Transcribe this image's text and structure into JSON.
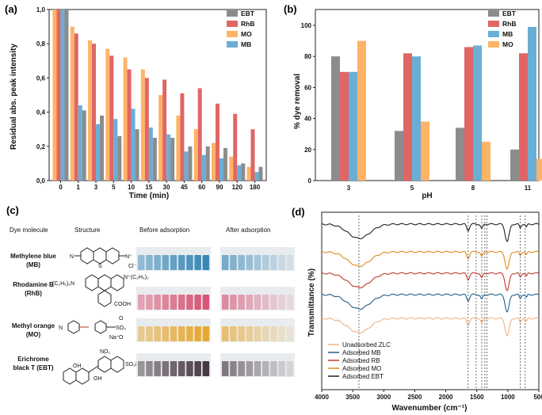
{
  "panels": {
    "a": "(a)",
    "b": "(b)",
    "c": "(c)",
    "d": "(d)"
  },
  "colors": {
    "EBT": "#8c8c8c",
    "RhB": "#e06666",
    "MO": "#ffb366",
    "MB": "#6aaed6",
    "ZLC": "#f4b183",
    "MBline": "#1f5f8b",
    "RBline": "#c0392b",
    "MOline": "#e08a1e",
    "EBTline": "#222222"
  },
  "chart_data": [
    {
      "id": "a",
      "type": "bar",
      "title": "",
      "xlabel": "Time (min)",
      "ylabel": "Residual abs. peak intensity",
      "ylim": [
        0,
        1.0
      ],
      "yticks": [
        "0,0",
        "0,2",
        "0,4",
        "0,6",
        "0,8",
        "1,0"
      ],
      "categories": [
        "0",
        "1",
        "3",
        "5",
        "10",
        "15",
        "30",
        "45",
        "60",
        "90",
        "120",
        "180"
      ],
      "legend": [
        "EBT",
        "RhB",
        "MO",
        "MB"
      ],
      "legend_position": "top-right",
      "series": [
        {
          "name": "MO",
          "values": [
            1.0,
            0.9,
            0.82,
            0.77,
            0.72,
            0.65,
            0.5,
            0.38,
            0.3,
            0.22,
            0.14,
            0.08
          ]
        },
        {
          "name": "RhB",
          "values": [
            1.0,
            0.86,
            0.8,
            0.73,
            0.65,
            0.6,
            0.59,
            0.51,
            0.54,
            0.45,
            0.39,
            0.3
          ]
        },
        {
          "name": "MB",
          "values": [
            1.0,
            0.44,
            0.33,
            0.36,
            0.42,
            0.31,
            0.27,
            0.17,
            0.15,
            0.13,
            0.09,
            0.05
          ]
        },
        {
          "name": "EBT",
          "values": [
            1.0,
            0.41,
            0.38,
            0.26,
            0.3,
            0.25,
            0.25,
            0.2,
            0.2,
            0.19,
            0.1,
            0.08
          ]
        }
      ]
    },
    {
      "id": "b",
      "type": "bar",
      "xlabel": "pH",
      "ylabel": "% dye removal",
      "ylim": [
        0,
        100
      ],
      "yticks": [
        "0",
        "20",
        "40",
        "60",
        "80",
        "100"
      ],
      "categories": [
        "3",
        "5",
        "8",
        "11"
      ],
      "legend": [
        "EBT",
        "RhB",
        "MB",
        "MO"
      ],
      "legend_position": "top-right",
      "series": [
        {
          "name": "EBT",
          "values": [
            80,
            32,
            34,
            20
          ]
        },
        {
          "name": "RhB",
          "values": [
            70,
            82,
            86,
            82
          ]
        },
        {
          "name": "MB",
          "values": [
            70,
            80,
            87,
            99
          ]
        },
        {
          "name": "MO",
          "values": [
            90,
            38,
            25,
            14
          ]
        }
      ]
    },
    {
      "id": "d",
      "type": "line",
      "xlabel": "Wavenumber (cm⁻¹)",
      "ylabel": "Transmittance (%)",
      "xlim": [
        4000,
        500
      ],
      "xticks": [
        "4000",
        "3500",
        "3000",
        "2500",
        "2000",
        "1500",
        "1000",
        "500"
      ],
      "dashed_lines": [
        3400,
        1640,
        1510,
        1420,
        1370,
        1335,
        800,
        720
      ],
      "legend": [
        "Unadsorbed ZLC",
        "Adsorbed MB",
        "Adsorbed RB",
        "Adsorbed MO",
        "Adsorbed EBT"
      ],
      "legend_position": "bottom-left"
    }
  ],
  "table": {
    "headers": [
      "Dye molecule",
      "Structure",
      "Before adsorption",
      "After adsorption"
    ],
    "rows": [
      {
        "name1": "Methylene blue",
        "name2": "(MB)",
        "vial_color": "#2a7fb0"
      },
      {
        "name1": "Rhodamine B",
        "name2": "(RhB)",
        "vial_color": "#d64a6a"
      },
      {
        "name1": "Methyl orange",
        "name2": "(MO)",
        "vial_color": "#e6a21e"
      },
      {
        "name1": "Erichrome",
        "name2": "black T (EBT)",
        "vial_color": "#3a2a35"
      }
    ],
    "struct_labels": {
      "mb_cl": "Cl⁻",
      "mb_n": "N",
      "mb_s": "S",
      "mb_np": "N⁺",
      "rhb_left": "(C₂H₅)₂N",
      "rhb_right": "N⁺(C₂H₅)₂",
      "rhb_cooh": "COOH",
      "mo_n": "N",
      "mo_so3": "SO₃",
      "mo_na": "Na⁺",
      "mo_o1": "O",
      "mo_o2": "O",
      "ebt_no2": "NO₂",
      "ebt_oh1": "OH",
      "ebt_oh2": "OH",
      "ebt_so3na": "SO₃Na"
    }
  }
}
